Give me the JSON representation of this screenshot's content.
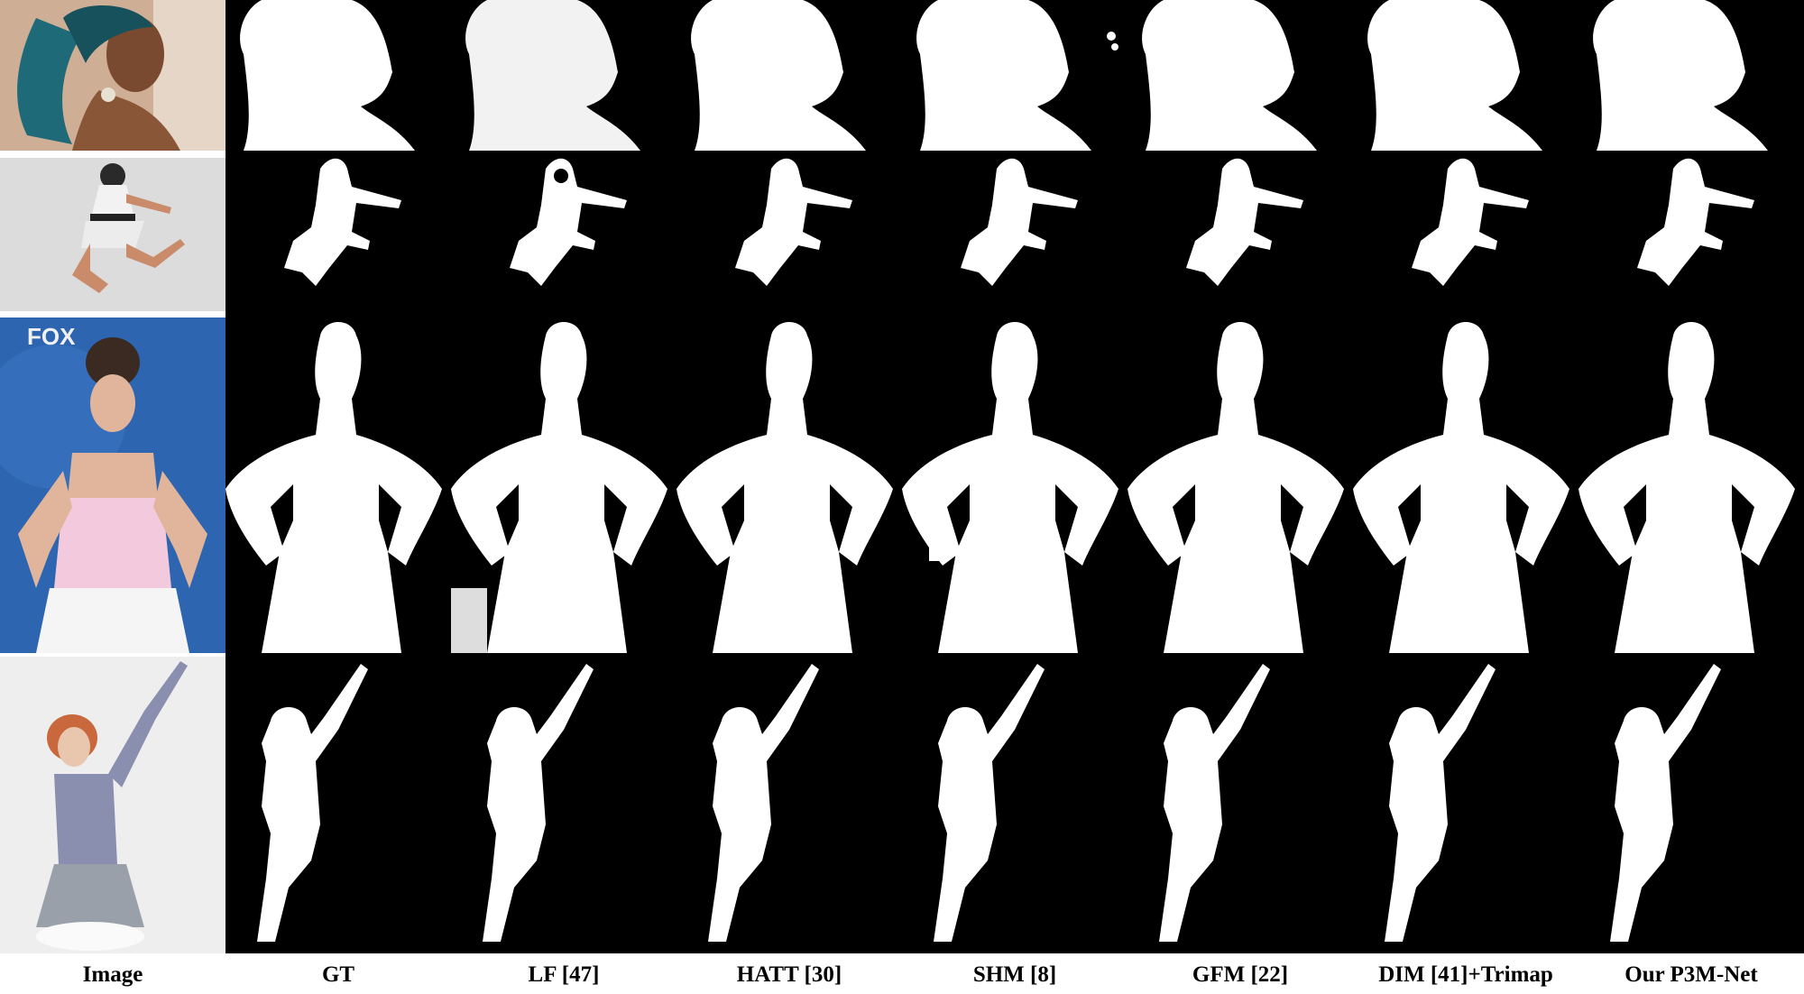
{
  "columns": [
    {
      "label": "Image"
    },
    {
      "label": "GT"
    },
    {
      "label": "LF [47]"
    },
    {
      "label": "HATT [30]"
    },
    {
      "label": "SHM [8]"
    },
    {
      "label": "GFM [22]"
    },
    {
      "label": "DIM [41]+Trimap"
    },
    {
      "label": "Our P3M-Net"
    }
  ],
  "rows": [
    {
      "subject": "woman with teal ponytail and earring",
      "photo_bg": "#c9a48a"
    },
    {
      "subject": "jumping dancer in white dress",
      "photo_bg": "#d9d9d9"
    },
    {
      "subject": "woman in pink strapless dress",
      "photo_bg": "#2f67b4",
      "photo_logo": "FOX"
    },
    {
      "subject": "red-haired woman in grey outfit",
      "photo_bg": "#ebebeb"
    }
  ],
  "colors": {
    "matte_bg": "#000000",
    "matte_fg": "#ffffff"
  }
}
